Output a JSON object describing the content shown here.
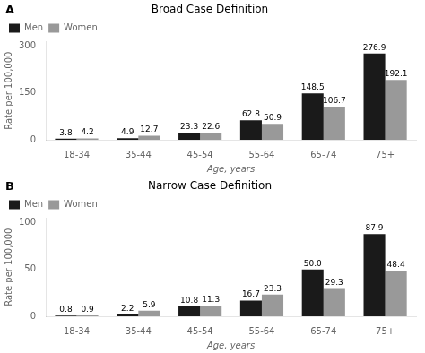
{
  "chart_data": [
    {
      "type": "bar",
      "title": "Broad Case Definition",
      "annotations": [
        "A"
      ],
      "categories": [
        "18-34",
        "35-44",
        "45-54",
        "55-64",
        "65-74",
        "75+"
      ],
      "series": [
        {
          "name": "Men",
          "color": "#1a1a1a",
          "values": [
            3.8,
            4.9,
            23.3,
            62.8,
            148.5,
            276.9
          ]
        },
        {
          "name": "Women",
          "color": "#999999",
          "values": [
            4.2,
            12.7,
            22.6,
            50.9,
            106.7,
            192.1
          ]
        }
      ],
      "ylim": [
        0,
        315
      ],
      "yticks": [
        0,
        150,
        300
      ],
      "xlabel": "Age, years",
      "ylabel": "Rate per 100,000",
      "data_labels": true,
      "legend": "upper left",
      "grid": false
    },
    {
      "type": "bar",
      "title": "Narrow Case Definition",
      "annotations": [
        "B"
      ],
      "categories": [
        "18-34",
        "35-44",
        "45-54",
        "55-64",
        "65-74",
        "75+"
      ],
      "series": [
        {
          "name": "Men",
          "color": "#1a1a1a",
          "values": [
            0.8,
            2.2,
            10.8,
            16.7,
            50.0,
            87.9
          ],
          "value_labels": [
            "0.8",
            "2.2",
            "10.8",
            "16.7",
            "50.0",
            "87.9"
          ]
        },
        {
          "name": "Women",
          "color": "#999999",
          "values": [
            0.9,
            5.9,
            11.3,
            23.3,
            29.3,
            48.4
          ]
        }
      ],
      "ylim": [
        0,
        105
      ],
      "yticks": [
        0,
        50,
        100
      ],
      "xlabel": "Age, years",
      "ylabel": "Rate per 100,000",
      "data_labels": true,
      "legend": "upper left",
      "grid": false
    }
  ]
}
